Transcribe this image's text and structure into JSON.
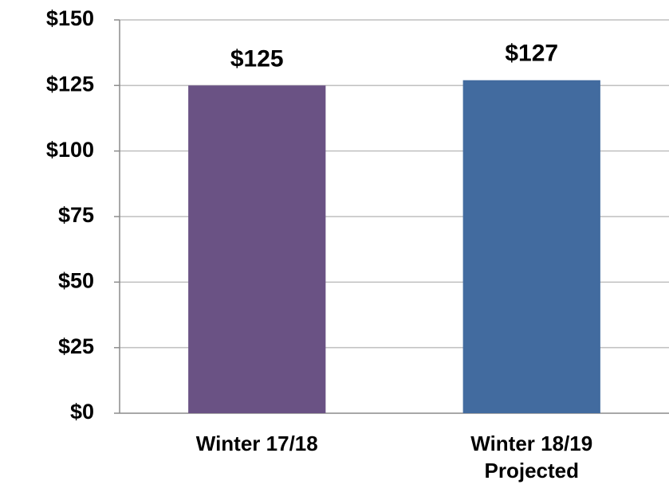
{
  "chart_data": {
    "type": "bar",
    "categories": [
      "Winter 17/18",
      "Winter 18/19 Projected"
    ],
    "values": [
      125,
      127
    ],
    "value_labels": [
      "$125",
      "$127"
    ],
    "colors": [
      "#6a5284",
      "#426b9f"
    ],
    "ylim": [
      0,
      150
    ],
    "yticks": [
      {
        "value": 0,
        "label": "$0"
      },
      {
        "value": 25,
        "label": "$25"
      },
      {
        "value": 50,
        "label": "$50"
      },
      {
        "value": 75,
        "label": "$75"
      },
      {
        "value": 100,
        "label": "$100"
      },
      {
        "value": 125,
        "label": "$125"
      },
      {
        "value": 150,
        "label": "$150"
      }
    ],
    "grid": true
  }
}
